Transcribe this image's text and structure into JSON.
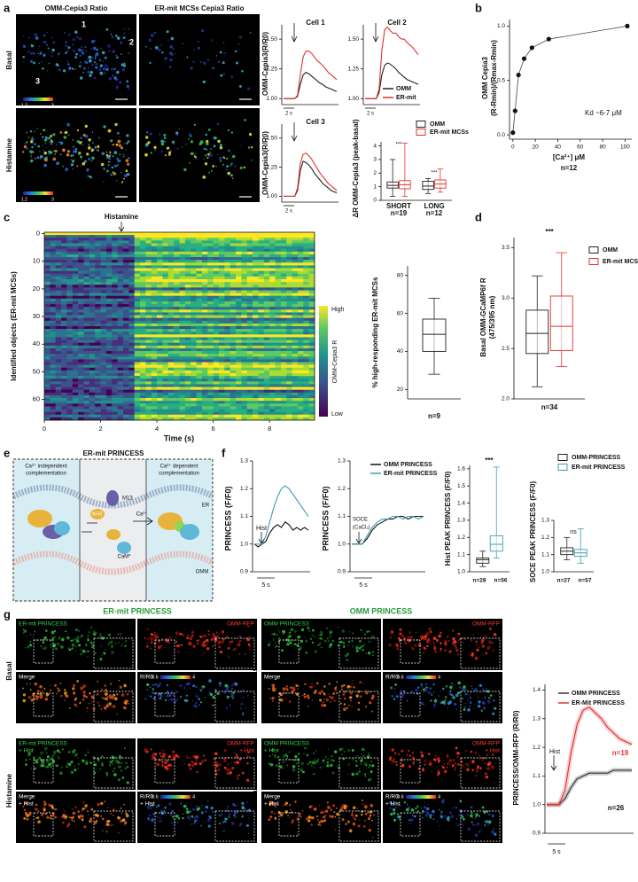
{
  "panels": {
    "a": {
      "label": "a",
      "image_titles": [
        "OMM-Cepia3 Ratio",
        "ER-mit MCSs Cepia3 Ratio"
      ],
      "row_labels": [
        "Basal",
        "Histamine"
      ],
      "cell_numbers": [
        "1",
        "2",
        "3"
      ],
      "colorbar_labels": [
        "1.2",
        "3"
      ],
      "traces": {
        "type": "line",
        "y_label": "OMM-Cepia3(R/R0)",
        "time_scale": "2 s",
        "ylim": [
          0.95,
          1.62
        ],
        "yticks": [
          {
            "value": 1,
            "label": "1.00"
          },
          1.25,
          {
            "value": 1.5,
            "label": "1.50"
          }
        ],
        "cells": [
          {
            "title": "Cell 1",
            "series": [
              {
                "name": "OMM",
                "color": "#222222",
                "values": [
                  1,
                  1,
                  1,
                  1,
                  1,
                  1.02,
                  1.12,
                  1.2,
                  1.22,
                  1.21,
                  1.19,
                  1.17,
                  1.15,
                  1.13,
                  1.12,
                  1.1,
                  1.09,
                  1.08,
                  1.07,
                  1.06
                ]
              },
              {
                "name": "ER-mit",
                "color": "#e0342e",
                "values": [
                  1,
                  1,
                  1,
                  1,
                  1,
                  1.03,
                  1.2,
                  1.35,
                  1.4,
                  1.4,
                  1.38,
                  1.35,
                  1.32,
                  1.3,
                  1.28,
                  1.25,
                  1.22,
                  1.2,
                  1.18,
                  1.16
                ]
              }
            ]
          },
          {
            "title": "Cell 2",
            "series": [
              {
                "name": "OMM",
                "color": "#222222",
                "values": [
                  1,
                  1,
                  1,
                  1,
                  1,
                  1.05,
                  1.2,
                  1.28,
                  1.3,
                  1.29,
                  1.27,
                  1.25,
                  1.22,
                  1.2,
                  1.18,
                  1.16,
                  1.15,
                  1.14,
                  1.13,
                  1.12
                ]
              },
              {
                "name": "ER-mit",
                "color": "#e0342e",
                "values": [
                  1,
                  1,
                  1,
                  1,
                  1,
                  1.08,
                  1.4,
                  1.58,
                  1.6,
                  1.57,
                  1.55,
                  1.55,
                  1.52,
                  1.5,
                  1.5,
                  1.47,
                  1.45,
                  1.43,
                  1.4,
                  1.37
                ]
              }
            ]
          },
          {
            "title": "Cell 3",
            "series": [
              {
                "name": "OMM",
                "color": "#222222",
                "values": [
                  1,
                  1,
                  1,
                  1,
                  1,
                  1.05,
                  1.22,
                  1.3,
                  1.29,
                  1.27,
                  1.24,
                  1.2,
                  1.17,
                  1.14,
                  1.11,
                  1.09,
                  1.07,
                  1.05,
                  1.04,
                  1.03
                ]
              },
              {
                "name": "ER-mit",
                "color": "#e0342e",
                "values": [
                  1,
                  1,
                  1,
                  1,
                  1,
                  1.07,
                  1.28,
                  1.36,
                  1.37,
                  1.35,
                  1.32,
                  1.28,
                  1.24,
                  1.2,
                  1.17,
                  1.14,
                  1.11,
                  1.09,
                  1.07,
                  1.05
                ]
              }
            ]
          }
        ]
      },
      "box": {
        "type": "box",
        "y_label": "ΔR OMM-Cepia3 (peak-basal)",
        "categories": [
          "SHORT",
          "LONG"
        ],
        "n_labels": [
          "n=19",
          "n=12"
        ],
        "significance": [
          "***",
          "***"
        ],
        "ylim": [
          0,
          4.3
        ],
        "yticks": [
          0,
          1,
          2,
          3,
          4
        ],
        "series": [
          {
            "name": "OMM",
            "color": "#222222",
            "boxes": [
              {
                "min": 0.3,
                "q1": 0.9,
                "median": 1.1,
                "q3": 1.35,
                "max": 3.0
              },
              {
                "min": 0.5,
                "q1": 0.8,
                "median": 1.05,
                "q3": 1.4,
                "max": 1.6
              }
            ]
          },
          {
            "name": "ER-mit MCSs",
            "color": "#e0342e",
            "boxes": [
              {
                "min": 0.3,
                "q1": 0.85,
                "median": 1.15,
                "q3": 1.45,
                "max": 4.2
              },
              {
                "min": 0.6,
                "q1": 0.9,
                "median": 1.2,
                "q3": 1.5,
                "max": 2.3
              }
            ]
          }
        ]
      }
    },
    "b": {
      "label": "b",
      "type": "scatter",
      "y_label": [
        "OMM Cepia3",
        "(R-Rmin)/(Rmax-Rmin)"
      ],
      "x_label": "[Ca²⁺] μM",
      "annotation": "Kd ~6-7 μM",
      "n": "n=12",
      "color": "#111111",
      "x": [
        0,
        2,
        5,
        10,
        17,
        32,
        102
      ],
      "values": [
        0.02,
        0.22,
        0.55,
        0.7,
        0.8,
        0.88,
        1.0
      ],
      "xlim": [
        -3,
        106
      ],
      "xticks": [
        0,
        20,
        40,
        60,
        80,
        100
      ],
      "ylim": [
        -0.04,
        1.06
      ],
      "yticks": [
        {
          "value": 0,
          "label": "0.0"
        },
        0.5,
        {
          "value": 1,
          "label": "1.0"
        }
      ]
    },
    "c": {
      "label": "c",
      "annotation": "Histamine",
      "y_label": "Identified objects (ER-mit MCSs)",
      "x_label": "Time (s)",
      "heatmap": {
        "xlim": [
          0,
          9.6
        ],
        "xticks": [
          0,
          2,
          4,
          6,
          8
        ],
        "ylim": [
          0,
          68
        ],
        "yticks": [
          0,
          10,
          20,
          30,
          40,
          50,
          60
        ]
      },
      "colorbar": [
        "High",
        "Low"
      ],
      "colorbar_label": "OMM-Cepia3 R",
      "box": {
        "y_label": "% high-responding ER-mit MCSs",
        "n": "n=9",
        "color": "#222222",
        "ylim": [
          15,
          85
        ],
        "yticks": [
          20,
          40,
          60,
          80
        ],
        "boxes": [
          {
            "min": 28,
            "q1": 40,
            "median": 49,
            "q3": 57,
            "max": 68
          }
        ]
      }
    },
    "d": {
      "label": "d",
      "type": "box",
      "y_label": [
        "Basal OMM-GCaMP6f R",
        "(475/395 nm)"
      ],
      "significance": "***",
      "n": "n=34",
      "ylim": [
        2.0,
        3.6
      ],
      "yticks": [
        {
          "value": 2,
          "label": "2.0"
        },
        2.5,
        {
          "value": 3,
          "label": "3.0"
        },
        3.5
      ],
      "series": [
        {
          "name": "OMM",
          "color": "#222222",
          "boxes": [
            {
              "min": 2.12,
              "q1": 2.45,
              "median": 2.65,
              "q3": 2.88,
              "max": 3.22
            }
          ]
        },
        {
          "name": "ER-mit MCSs",
          "color": "#e0342e",
          "boxes": [
            {
              "min": 2.32,
              "q1": 2.48,
              "median": 2.72,
              "q3": 3.02,
              "max": 3.45
            }
          ]
        }
      ]
    },
    "e": {
      "label": "e",
      "title": "ER-mit PRINCESS",
      "left": [
        "Ca²⁺ independent",
        "complementation"
      ],
      "right": [
        "Ca²⁺ dependent",
        "complementation"
      ],
      "labels": [
        "M13",
        "NFAT",
        "Ca²⁺",
        "CaM*",
        "ER",
        "OMM"
      ]
    },
    "f": {
      "label": "f",
      "y_label": "PRINCESS (F/F0)",
      "hist": "Hist",
      "soce": [
        "SOCE",
        "(CaCl₂)"
      ],
      "time_scale": "5 s",
      "ylim": [
        0.9,
        1.3
      ],
      "yticks": [
        0.9,
        {
          "value": 1,
          "label": "1.0"
        },
        1.1,
        1.2,
        1.3
      ],
      "traces": [
        {
          "series": [
            {
              "name": "OMM PRINCESS",
              "color": "#111111",
              "values": [
                1.0,
                0.99,
                1.0,
                1.01,
                1.04,
                1.06,
                1.07,
                1.06,
                1.08,
                1.07,
                1.05,
                1.06,
                1.05,
                1.06,
                1.05
              ]
            },
            {
              "name": "ER-mit PRINCESS",
              "color": "#3a9fb2",
              "values": [
                1.0,
                1.0,
                1.0,
                1.03,
                1.08,
                1.13,
                1.17,
                1.2,
                1.21,
                1.2,
                1.18,
                1.16,
                1.14,
                1.12,
                1.1
              ]
            }
          ]
        },
        {
          "series": [
            {
              "name": "OMM PRINCESS",
              "color": "#111111",
              "values": [
                1.0,
                1.0,
                1.0,
                1.02,
                1.05,
                1.07,
                1.08,
                1.09,
                1.09,
                1.1,
                1.1,
                1.09,
                1.1,
                1.1,
                1.1
              ]
            },
            {
              "name": "ER-mit PRINCESS",
              "color": "#3a9fb2",
              "values": [
                1.0,
                1.0,
                1.0,
                1.03,
                1.06,
                1.08,
                1.09,
                1.09,
                1.1,
                1.1,
                1.09,
                1.1,
                1.1,
                1.09,
                1.1
              ]
            }
          ]
        }
      ],
      "hist_box": {
        "y_label": "Hist PEAK PRINCESS (F/F0)",
        "significance": "***",
        "n_labels": [
          "n=28",
          "n=56"
        ],
        "ylim": [
          1.0,
          1.62
        ],
        "yticks": [
          {
            "value": 1,
            "label": "1.0"
          },
          1.1,
          1.2,
          1.3,
          1.4,
          1.5,
          1.6
        ],
        "series": [
          {
            "name": "OMM-PRINCESS",
            "color": "#222222",
            "boxes": [
              {
                "min": 1.03,
                "q1": 1.05,
                "median": 1.07,
                "q3": 1.08,
                "max": 1.12
              }
            ]
          },
          {
            "name": "ER-mit PRINCESS",
            "color": "#3a9fb2",
            "boxes": [
              {
                "min": 1.08,
                "q1": 1.12,
                "median": 1.16,
                "q3": 1.21,
                "max": 1.61
              }
            ]
          }
        ]
      },
      "soce_box": {
        "y_label": "SOCE PEAK PRINCESS (F/F0)",
        "significance": "ns",
        "n_labels": [
          "n=27",
          "n=57"
        ],
        "ylim": [
          1.0,
          1.3
        ],
        "yticks": [
          {
            "value": 1,
            "label": "1.0"
          },
          1.1,
          1.2,
          1.3
        ],
        "series": [
          {
            "name": "OMM-PRINCESS",
            "color": "#222222",
            "boxes": [
              {
                "min": 1.07,
                "q1": 1.1,
                "median": 1.12,
                "q3": 1.14,
                "max": 1.2
              }
            ]
          },
          {
            "name": "ER-mit PRINCESS",
            "color": "#3a9fb2",
            "boxes": [
              {
                "min": 1.05,
                "q1": 1.09,
                "median": 1.11,
                "q3": 1.13,
                "max": 1.25
              }
            ]
          }
        ]
      }
    },
    "g": {
      "label": "g",
      "titles": [
        "ER-mit PRINCESS",
        "OMM PRINCESS"
      ],
      "row_labels": [
        "Basal",
        "Histamine"
      ],
      "tiles": [
        "ER-mit PRINCESS",
        "OMM PRINCESS",
        "OMM-RFP",
        "Merge",
        "R/R0",
        "+ Hist"
      ],
      "ratio_scale": [
        "0.6",
        "4"
      ],
      "chart": {
        "type": "line",
        "y_label": "PRINCESS/OMM-RFP (R/R0)",
        "hist": "Hist",
        "time_scale": "5 s",
        "ylim": [
          0.9,
          1.42
        ],
        "yticks": [
          0.9,
          {
            "value": 1,
            "label": "1.0"
          },
          1.1,
          1.2,
          1.3,
          1.4
        ],
        "series": [
          {
            "name": "OMM PRINCESS",
            "color": "#333333",
            "n": "n=26",
            "values": [
              1,
              1,
              1,
              1.02,
              1.06,
              1.09,
              1.1,
              1.11,
              1.11,
              1.11,
              1.11,
              1.12,
              1.12,
              1.12,
              1.12
            ]
          },
          {
            "name": "ER-Mit PRINCESS",
            "color": "#e0342e",
            "n": "n=19",
            "values": [
              1,
              1,
              1,
              1.05,
              1.18,
              1.28,
              1.33,
              1.34,
              1.32,
              1.3,
              1.27,
              1.25,
              1.23,
              1.22,
              1.21
            ]
          }
        ]
      }
    }
  }
}
